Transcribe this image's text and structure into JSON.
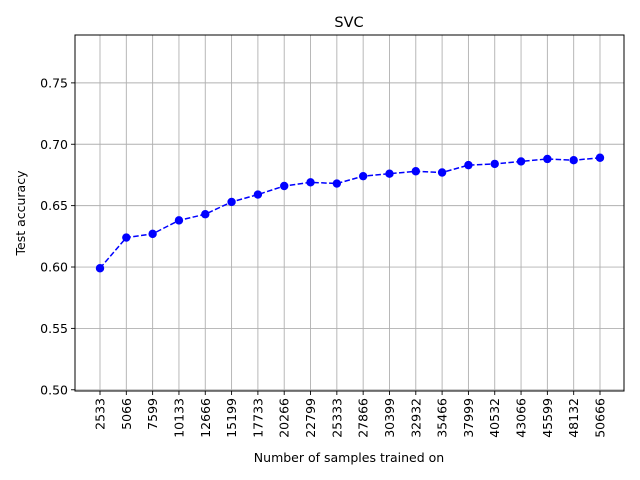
{
  "chart_data": {
    "type": "line",
    "title": "SVC",
    "xlabel": "Number of samples trained on",
    "ylabel": "Test accuracy",
    "categories": [
      "2533",
      "5066",
      "7599",
      "10133",
      "12666",
      "15199",
      "17733",
      "20266",
      "22799",
      "25333",
      "27866",
      "30399",
      "32932",
      "35466",
      "37999",
      "40532",
      "43066",
      "45599",
      "48132",
      "50666"
    ],
    "series": [
      {
        "values": [
          0.599,
          0.624,
          0.627,
          0.638,
          0.643,
          0.653,
          0.659,
          0.666,
          0.669,
          0.668,
          0.674,
          0.676,
          0.678,
          0.677,
          0.683,
          0.684,
          0.686,
          0.688,
          0.687,
          0.689
        ],
        "color": "#0000ff",
        "line_style": "dashed",
        "marker": "circle"
      }
    ],
    "yticks": [
      "0.50",
      "0.55",
      "0.60",
      "0.65",
      "0.70",
      "0.75"
    ],
    "ylim": [
      0.499,
      0.789
    ],
    "grid": true
  }
}
